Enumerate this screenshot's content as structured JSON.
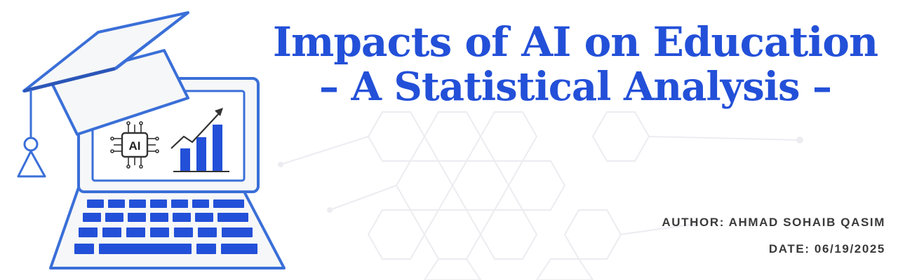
{
  "title": {
    "line1": "Impacts of AI on Education",
    "line2": "– A Statistical Analysis –"
  },
  "author": "AUTHOR: AHMAD SOHAIB QASIM",
  "date": "DATE: 06/19/2025",
  "illustration": {
    "chip_label": "AI",
    "icons": [
      "graduation-cap-icon",
      "laptop-icon",
      "ai-chip-icon",
      "bar-chart-icon",
      "trend-arrow-icon"
    ]
  },
  "colors": {
    "primary": "#2350d8",
    "outline": "#3a6fd8",
    "text_dark": "#3a3a3a",
    "pattern": "#e9e9ee"
  }
}
